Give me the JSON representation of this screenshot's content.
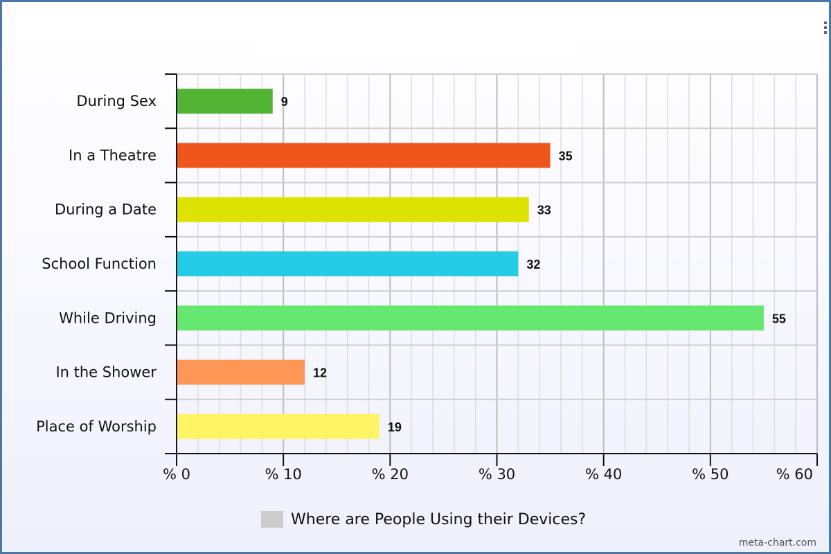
{
  "chart_data": {
    "type": "bar",
    "orientation": "horizontal",
    "categories": [
      "During Sex",
      "In a Theatre",
      "During a Date",
      "School Function",
      "While Driving",
      "In the Shower",
      "Place of Worship"
    ],
    "series": [
      {
        "name": "Where are People Using their Devices?",
        "values": [
          9,
          35,
          33,
          32,
          55,
          12,
          19
        ],
        "colors": [
          "#52b335",
          "#ee561c",
          "#dde200",
          "#24cce6",
          "#64e66f",
          "#ff9757",
          "#fff465"
        ]
      }
    ],
    "xlim": [
      0,
      60
    ],
    "xticks": [
      0,
      10,
      20,
      30,
      40,
      50,
      60
    ],
    "tick_labels": [
      "% 0",
      "% 10",
      "% 20",
      "% 30",
      "% 40",
      "% 50",
      "% 60"
    ],
    "grid": true,
    "legend_position": "bottom",
    "legend_color": "#cccccc"
  },
  "credit": "meta-chart.com"
}
